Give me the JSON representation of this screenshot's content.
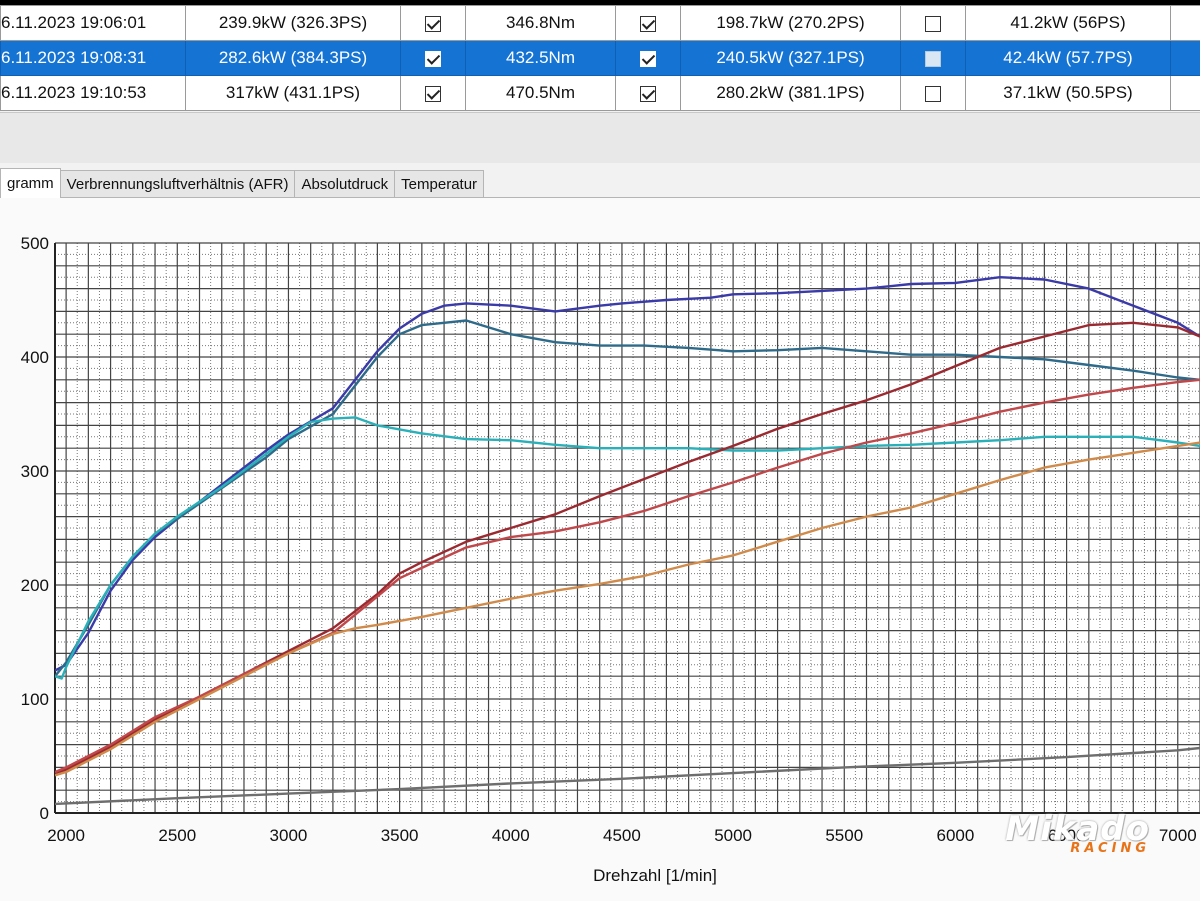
{
  "runs_table": {
    "rows": [
      {
        "date": "6.11.2023 19:06:01",
        "power": "239.9kW (326.3PS)",
        "c1": true,
        "torque": "346.8Nm",
        "c2": true,
        "wheel": "198.7kW (270.2PS)",
        "c3": false,
        "loss": "41.2kW (56PS)",
        "selected": false
      },
      {
        "date": "6.11.2023 19:08:31",
        "power": "282.6kW (384.3PS)",
        "c1": true,
        "torque": "432.5Nm",
        "c2": true,
        "wheel": "240.5kW (327.1PS)",
        "c3": false,
        "loss": "42.4kW (57.7PS)",
        "selected": true
      },
      {
        "date": "6.11.2023 19:10:53",
        "power": "317kW (431.1PS)",
        "c1": true,
        "torque": "470.5Nm",
        "c2": true,
        "wheel": "280.2kW (381.1PS)",
        "c3": false,
        "loss": "37.1kW (50.5PS)",
        "selected": false
      }
    ]
  },
  "tabs": [
    {
      "label": "gramm",
      "active": true
    },
    {
      "label": "Verbrennungsluftverhältnis (AFR)",
      "active": false
    },
    {
      "label": "Absolutdruck",
      "active": false
    },
    {
      "label": "Temperatur",
      "active": false
    }
  ],
  "logo": {
    "main": "Mikado",
    "sub": "RACING"
  },
  "colors": {
    "selected_row": "#1473d3",
    "grid": "#555555"
  },
  "chart_data": {
    "type": "line",
    "xlabel": "Drehzahl [1/min]",
    "ylabel": "",
    "xlim": [
      1950,
      7100
    ],
    "ylim": [
      0,
      500
    ],
    "xticks": [
      2000,
      2500,
      3000,
      3500,
      4000,
      4500,
      5000,
      5500,
      6000,
      6500,
      7000
    ],
    "xtick_labels": [
      "2000",
      "2500",
      "3000",
      "3500",
      "4000",
      "4500",
      "5000",
      "5500",
      "6000",
      "6500",
      "7000"
    ],
    "yticks": [
      0,
      100,
      200,
      300,
      400,
      500
    ],
    "ytick_labels": [
      "0",
      "100",
      "200",
      "300",
      "400",
      "500"
    ],
    "grid": true,
    "series": [
      {
        "color": "#3a3aa8",
        "x": [
          1950,
          2000,
          2100,
          2200,
          2300,
          2400,
          2500,
          2700,
          2900,
          3000,
          3200,
          3400,
          3500,
          3600,
          3700,
          3800,
          4000,
          4200,
          4400,
          4500,
          4700,
          4900,
          5000,
          5200,
          5400,
          5600,
          5800,
          6000,
          6200,
          6400,
          6600,
          6800,
          7000,
          7100
        ],
        "y": [
          125,
          130,
          158,
          195,
          222,
          242,
          258,
          288,
          318,
          332,
          355,
          405,
          425,
          438,
          445,
          447,
          445,
          440,
          445,
          447,
          450,
          452,
          455,
          456,
          458,
          460,
          464,
          465,
          470,
          468,
          460,
          445,
          430,
          418
        ]
      },
      {
        "color": "#2e6a8a",
        "x": [
          1950,
          2000,
          2100,
          2200,
          2300,
          2400,
          2500,
          2700,
          2900,
          3000,
          3200,
          3400,
          3500,
          3600,
          3700,
          3800,
          4000,
          4200,
          4400,
          4600,
          4800,
          5000,
          5200,
          5400,
          5600,
          5800,
          6000,
          6200,
          6400,
          6600,
          6800,
          7000,
          7100
        ],
        "y": [
          120,
          132,
          165,
          200,
          225,
          245,
          258,
          285,
          312,
          328,
          350,
          400,
          420,
          428,
          430,
          432,
          420,
          413,
          410,
          410,
          408,
          405,
          406,
          408,
          405,
          402,
          402,
          400,
          398,
          393,
          388,
          382,
          380
        ]
      },
      {
        "color": "#2ab0b8",
        "x": [
          1950,
          1980,
          2000,
          2100,
          2200,
          2300,
          2400,
          2500,
          2700,
          2900,
          3000,
          3100,
          3200,
          3300,
          3400,
          3600,
          3800,
          4000,
          4200,
          4400,
          4600,
          4800,
          5000,
          5200,
          5400,
          5600,
          5800,
          6000,
          6200,
          6400,
          6600,
          6800,
          7000,
          7100
        ],
        "y": [
          120,
          118,
          128,
          168,
          200,
          225,
          245,
          260,
          286,
          315,
          330,
          343,
          346,
          347,
          340,
          333,
          328,
          327,
          323,
          320,
          320,
          320,
          318,
          318,
          320,
          322,
          323,
          325,
          327,
          330,
          330,
          330,
          325,
          322
        ]
      },
      {
        "color": "#9b2a30",
        "x": [
          1950,
          2000,
          2200,
          2400,
          2600,
          2800,
          3000,
          3200,
          3400,
          3500,
          3600,
          3800,
          4000,
          4200,
          4400,
          4600,
          4800,
          5000,
          5200,
          5400,
          5600,
          5800,
          6000,
          6200,
          6400,
          6600,
          6800,
          7000,
          7100
        ],
        "y": [
          35,
          38,
          58,
          82,
          102,
          122,
          142,
          162,
          192,
          210,
          220,
          238,
          250,
          262,
          278,
          293,
          308,
          322,
          337,
          350,
          362,
          376,
          392,
          408,
          418,
          428,
          430,
          426,
          418
        ]
      },
      {
        "color": "#c0474a",
        "x": [
          1950,
          2000,
          2200,
          2400,
          2600,
          2800,
          3000,
          3200,
          3400,
          3500,
          3600,
          3800,
          4000,
          4200,
          4400,
          4600,
          4800,
          5000,
          5200,
          5400,
          5600,
          5800,
          6000,
          6200,
          6400,
          6600,
          6800,
          7000,
          7100
        ],
        "y": [
          36,
          40,
          60,
          84,
          102,
          122,
          140,
          158,
          190,
          206,
          215,
          233,
          242,
          247,
          255,
          265,
          278,
          290,
          303,
          315,
          325,
          333,
          342,
          352,
          360,
          367,
          373,
          378,
          380
        ]
      },
      {
        "color": "#d08a4a",
        "x": [
          1950,
          2000,
          2200,
          2400,
          2600,
          2800,
          3000,
          3200,
          3300,
          3400,
          3600,
          3800,
          4000,
          4200,
          4400,
          4600,
          4800,
          5000,
          5200,
          5400,
          5600,
          5800,
          6000,
          6200,
          6400,
          6600,
          6800,
          7000,
          7100
        ],
        "y": [
          33,
          36,
          56,
          80,
          100,
          120,
          140,
          157,
          162,
          165,
          172,
          180,
          188,
          195,
          201,
          208,
          218,
          226,
          238,
          250,
          260,
          268,
          280,
          292,
          303,
          310,
          316,
          322,
          325
        ]
      },
      {
        "color": "#6e6e6e",
        "x": [
          1950,
          2500,
          3000,
          3500,
          4000,
          4500,
          5000,
          5500,
          6000,
          6500,
          7000,
          7100
        ],
        "y": [
          8,
          13,
          17,
          21,
          26,
          30,
          35,
          40,
          44,
          49,
          55,
          57
        ]
      }
    ]
  }
}
